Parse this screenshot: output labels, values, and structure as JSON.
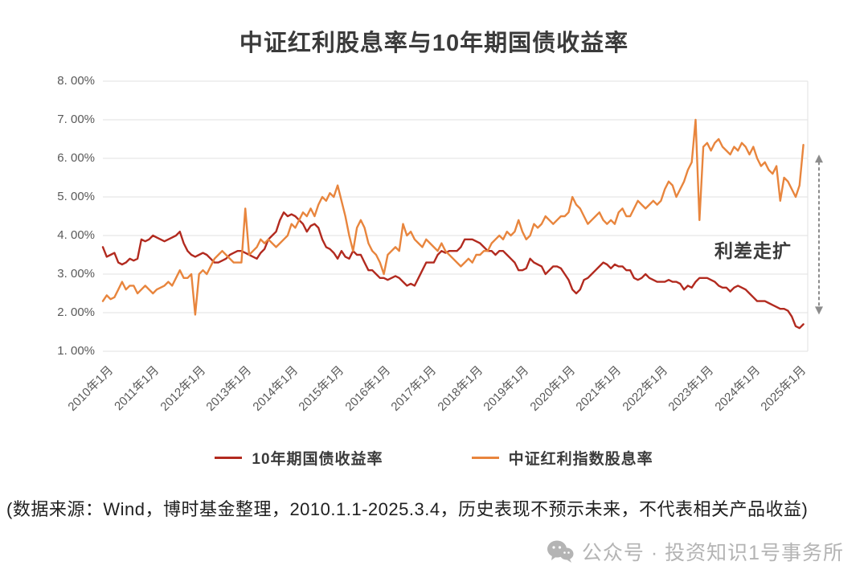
{
  "title": "中证红利股息率与10年期国债收益率",
  "annotation": {
    "text": "利差走扩"
  },
  "legend": {
    "items": [
      {
        "label": "10年期国债收益率",
        "color": "#b22a1f"
      },
      {
        "label": "中证红利指数股息率",
        "color": "#e8853d"
      }
    ]
  },
  "footer": {
    "source_note": "(数据来源：Wind，博时基金整理，2010.1.1-2025.3.4，历史表现不预示未来，不代表相关产品收益)"
  },
  "watermark": {
    "icon": "wechat-icon",
    "text": "公众号 · 投资知识1号事务所"
  },
  "chart_data": {
    "type": "line",
    "title": "中证红利股息率与10年期国债收益率",
    "ylim": [
      1,
      8
    ],
    "y_tick_labels": [
      "8. 00%",
      "7. 00%",
      "6. 00%",
      "5. 00%",
      "4. 00%",
      "3. 00%",
      "2. 00%",
      "1. 00%"
    ],
    "x_tick_labels": [
      "2010年1月",
      "2011年1月",
      "2012年1月",
      "2013年1月",
      "2014年1月",
      "2015年1月",
      "2016年1月",
      "2017年1月",
      "2018年1月",
      "2019年1月",
      "2020年1月",
      "2021年1月",
      "2022年1月",
      "2023年1月",
      "2024年1月",
      "2025年1月"
    ],
    "x_start_year": 2010,
    "x_interval_months": 1,
    "grid": "horizontal",
    "legend_position": "bottom",
    "annotation": {
      "text": "利差走扩",
      "arrow": "vertical dashed double-headed arrow at right edge from ~6.1% down to ~1.9%"
    },
    "series": [
      {
        "name": "10年期国债收益率",
        "color": "#b22a1f",
        "values": [
          3.7,
          3.45,
          3.5,
          3.55,
          3.3,
          3.25,
          3.3,
          3.4,
          3.35,
          3.4,
          3.9,
          3.85,
          3.9,
          4.0,
          3.95,
          3.9,
          3.85,
          3.9,
          3.95,
          4.0,
          4.1,
          3.8,
          3.6,
          3.5,
          3.45,
          3.5,
          3.55,
          3.5,
          3.4,
          3.3,
          3.3,
          3.35,
          3.4,
          3.5,
          3.55,
          3.6,
          3.6,
          3.55,
          3.5,
          3.45,
          3.4,
          3.55,
          3.65,
          3.9,
          4.0,
          4.1,
          4.4,
          4.6,
          4.5,
          4.55,
          4.5,
          4.4,
          4.3,
          4.1,
          4.25,
          4.3,
          4.2,
          3.9,
          3.7,
          3.65,
          3.55,
          3.4,
          3.6,
          3.45,
          3.4,
          3.6,
          3.5,
          3.5,
          3.3,
          3.1,
          3.1,
          3.0,
          2.9,
          2.9,
          2.85,
          2.9,
          2.95,
          2.9,
          2.8,
          2.7,
          2.75,
          2.7,
          2.9,
          3.1,
          3.3,
          3.3,
          3.3,
          3.5,
          3.6,
          3.55,
          3.6,
          3.6,
          3.6,
          3.7,
          3.9,
          3.9,
          3.9,
          3.85,
          3.8,
          3.7,
          3.6,
          3.6,
          3.5,
          3.6,
          3.6,
          3.5,
          3.4,
          3.3,
          3.1,
          3.1,
          3.15,
          3.4,
          3.3,
          3.25,
          3.2,
          3.0,
          3.1,
          3.2,
          3.2,
          3.15,
          3.0,
          2.85,
          2.6,
          2.5,
          2.6,
          2.85,
          2.9,
          3.0,
          3.1,
          3.2,
          3.3,
          3.25,
          3.15,
          3.25,
          3.2,
          3.2,
          3.1,
          3.1,
          2.9,
          2.85,
          2.9,
          3.0,
          2.9,
          2.85,
          2.8,
          2.8,
          2.8,
          2.85,
          2.8,
          2.8,
          2.75,
          2.6,
          2.7,
          2.65,
          2.8,
          2.9,
          2.9,
          2.9,
          2.85,
          2.8,
          2.7,
          2.65,
          2.65,
          2.55,
          2.65,
          2.7,
          2.65,
          2.6,
          2.5,
          2.4,
          2.3,
          2.3,
          2.3,
          2.25,
          2.2,
          2.15,
          2.1,
          2.1,
          2.05,
          1.9,
          1.65,
          1.6,
          1.7
        ]
      },
      {
        "name": "中证红利指数股息率",
        "color": "#e8853d",
        "values": [
          2.3,
          2.45,
          2.35,
          2.4,
          2.6,
          2.8,
          2.6,
          2.7,
          2.7,
          2.5,
          2.6,
          2.7,
          2.6,
          2.5,
          2.6,
          2.65,
          2.7,
          2.8,
          2.7,
          2.9,
          3.1,
          2.9,
          2.9,
          3.0,
          1.95,
          3.0,
          3.1,
          3.0,
          3.2,
          3.4,
          3.5,
          3.6,
          3.5,
          3.4,
          3.3,
          3.3,
          3.3,
          4.7,
          3.5,
          3.6,
          3.7,
          3.9,
          3.8,
          3.9,
          3.8,
          3.7,
          3.8,
          3.9,
          4.0,
          4.3,
          4.2,
          4.4,
          4.6,
          4.5,
          4.7,
          4.5,
          4.8,
          5.0,
          4.9,
          5.1,
          5.0,
          5.3,
          4.9,
          4.5,
          4.0,
          3.6,
          4.2,
          4.4,
          4.2,
          3.8,
          3.6,
          3.5,
          3.3,
          3.0,
          3.5,
          3.6,
          3.7,
          3.6,
          4.3,
          4.0,
          4.1,
          3.9,
          3.8,
          3.7,
          3.9,
          3.8,
          3.7,
          3.6,
          3.8,
          3.6,
          3.5,
          3.4,
          3.3,
          3.2,
          3.3,
          3.4,
          3.3,
          3.5,
          3.5,
          3.6,
          3.6,
          3.8,
          3.9,
          4.0,
          3.9,
          4.1,
          4.0,
          4.1,
          4.4,
          4.1,
          3.9,
          4.0,
          4.3,
          4.2,
          4.3,
          4.5,
          4.4,
          4.3,
          4.4,
          4.5,
          4.5,
          4.6,
          5.0,
          4.8,
          4.7,
          4.5,
          4.3,
          4.4,
          4.5,
          4.6,
          4.4,
          4.3,
          4.4,
          4.3,
          4.6,
          4.7,
          4.5,
          4.5,
          4.7,
          4.9,
          4.8,
          4.7,
          4.8,
          4.9,
          4.8,
          4.9,
          5.2,
          5.4,
          5.3,
          5.0,
          5.2,
          5.4,
          5.7,
          5.9,
          7.0,
          4.4,
          6.3,
          6.4,
          6.2,
          6.4,
          6.5,
          6.3,
          6.2,
          6.1,
          6.3,
          6.2,
          6.4,
          6.3,
          6.1,
          6.3,
          6.0,
          5.8,
          5.9,
          5.7,
          5.6,
          5.8,
          4.9,
          5.5,
          5.4,
          5.2,
          5.0,
          5.3,
          6.35
        ]
      }
    ]
  }
}
